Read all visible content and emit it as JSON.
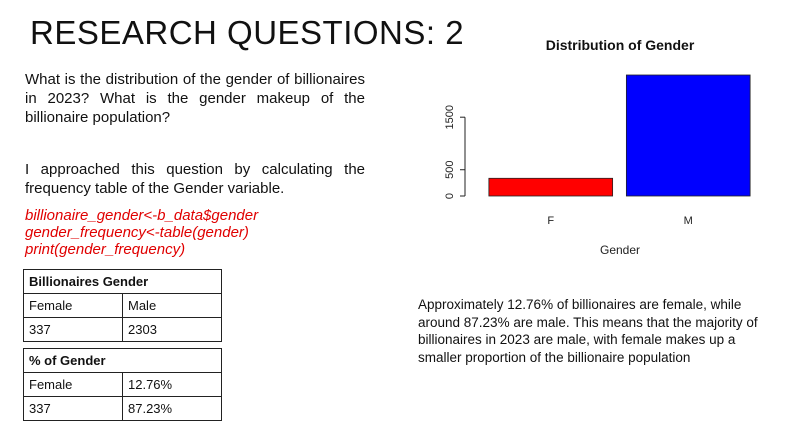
{
  "title": "RESEARCH QUESTIONS: 2",
  "question_text": "What is the distribution of the gender of billionaires in 2023? What is the gender makeup of the billionaire population?",
  "approach_text": "I approached this question by calculating the frequency table of the Gender variable.",
  "code_lines": [
    "billionaire_gender<-b_data$gender",
    "gender_frequency<-table(gender)",
    "print(gender_frequency)"
  ],
  "table_counts": {
    "title": "Billionaires Gender",
    "headers": [
      "Female",
      "Male"
    ],
    "values": [
      "337",
      "2303"
    ]
  },
  "table_percent": {
    "title": "% of Gender",
    "headers": [
      "Female",
      "12.76%"
    ],
    "values": [
      "337",
      "87.23%"
    ]
  },
  "summary_text": "Approximately 12.76% of billionaires are female, while around 87.23% are male. This means that the majority of billionaires in 2023 are male, with female makes up a smaller proportion of the billionaire population",
  "chart_data": {
    "type": "bar",
    "title": "Distribution of Gender",
    "xlabel": "Gender",
    "ylabel": "",
    "categories": [
      "F",
      "M"
    ],
    "values": [
      337,
      2303
    ],
    "colors": [
      "#ff0000",
      "#0000ff"
    ],
    "yticks": [
      0,
      500,
      1500
    ],
    "ylim": [
      0,
      2303
    ]
  }
}
